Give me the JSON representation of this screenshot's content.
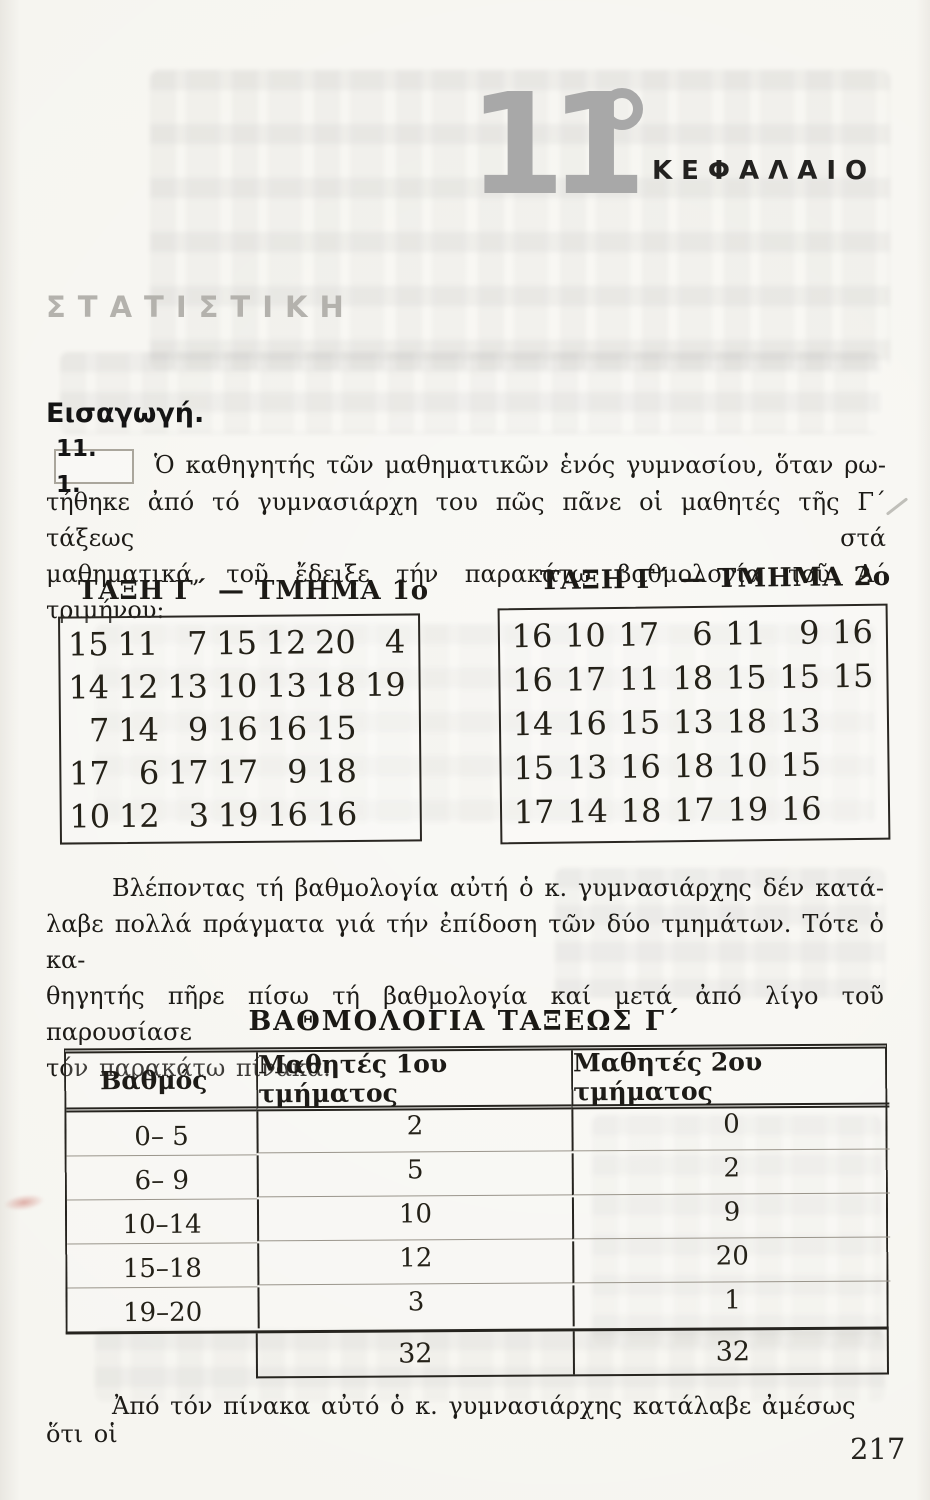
{
  "header": {
    "chapter_number": "11",
    "chapter_label": "ΚΕΦΑΛΑΙΟ",
    "section_title": "ΣΤΑΤΙΣΤΙΚΗ"
  },
  "intro": {
    "heading": "Εισαγωγή.",
    "section_number": "11. 1.",
    "first_line": "Ὁ καθηγητής τῶν μαθηματικῶν ἑνός γυμνασίου, ὅταν ρω-",
    "lines": [
      "τήθηκε ἀπό τό γυμνασιάρχη του πῶς πᾶνε οἱ μαθητές τῆς Γ´ τάξεως στά",
      "μαθηματικά, τοῦ ἔδειξε τήν παρακάτω βαθμολογία τοῦ Α´ τριμήνου:"
    ]
  },
  "grade_tables": [
    {
      "title": "ΤΑΞΗ Γ´ — ΤΜΗΜΑ 1ο",
      "rows": [
        [
          15,
          11,
          7,
          15,
          12,
          20,
          4
        ],
        [
          14,
          12,
          13,
          10,
          13,
          18,
          19
        ],
        [
          7,
          14,
          9,
          16,
          16,
          15,
          null
        ],
        [
          17,
          6,
          17,
          17,
          9,
          18,
          null
        ],
        [
          10,
          12,
          3,
          19,
          16,
          16,
          null
        ]
      ]
    },
    {
      "title": "ΤΑΞΗ Γ´ — ΤΜΗΜΑ 2ο",
      "rows": [
        [
          16,
          10,
          17,
          6,
          11,
          9,
          16
        ],
        [
          16,
          17,
          11,
          18,
          15,
          15,
          15
        ],
        [
          14,
          16,
          15,
          13,
          18,
          13,
          null
        ],
        [
          15,
          13,
          16,
          18,
          10,
          15,
          null
        ],
        [
          17,
          14,
          18,
          17,
          19,
          16,
          null
        ]
      ]
    }
  ],
  "middle_paragraph": {
    "lines": [
      "Βλέποντας τή βαθμολογία αὐτή ὁ κ. γυμνασιάρχης δέν κατά-",
      "λαβε πολλά πράγματα γιά τήν ἐπίδοση τῶν δύο τμημάτων. Τότε ὁ κα-",
      "θηγητής πῆρε πίσω τή βαθμολογία καί μετά ἀπό λίγο τοῦ παρουσίασε",
      "τόν παρακάτω πίνακα."
    ]
  },
  "freq_table": {
    "title": "ΒΑΘΜΟΛΟΓΙΑ ΤΑΞΕΩΣ Γ´",
    "headers": [
      "Βαθμός",
      "Μαθητές 1ου τμήματος",
      "Μαθητές 2ου τμήματος"
    ],
    "rows": [
      [
        "0– 5",
        "2",
        "0"
      ],
      [
        "6– 9",
        "5",
        "2"
      ],
      [
        "10–14",
        "10",
        "9"
      ],
      [
        "15–18",
        "12",
        "20"
      ],
      [
        "19–20",
        "3",
        "1"
      ]
    ],
    "totals": [
      "32",
      "32"
    ]
  },
  "closing_line": "Ἀπό τόν πίνακα αὐτό ὁ κ. γυμνασιάρχης κατάλαβε ἀμέσως ὅτι οἱ",
  "page_number": "217",
  "colors": {
    "paper": "#f6f5f0",
    "ink": "#26241f",
    "chapter_gray": "#a8a8a8",
    "title_gray": "#b4b2ad",
    "red_mark": "#ca7369"
  }
}
